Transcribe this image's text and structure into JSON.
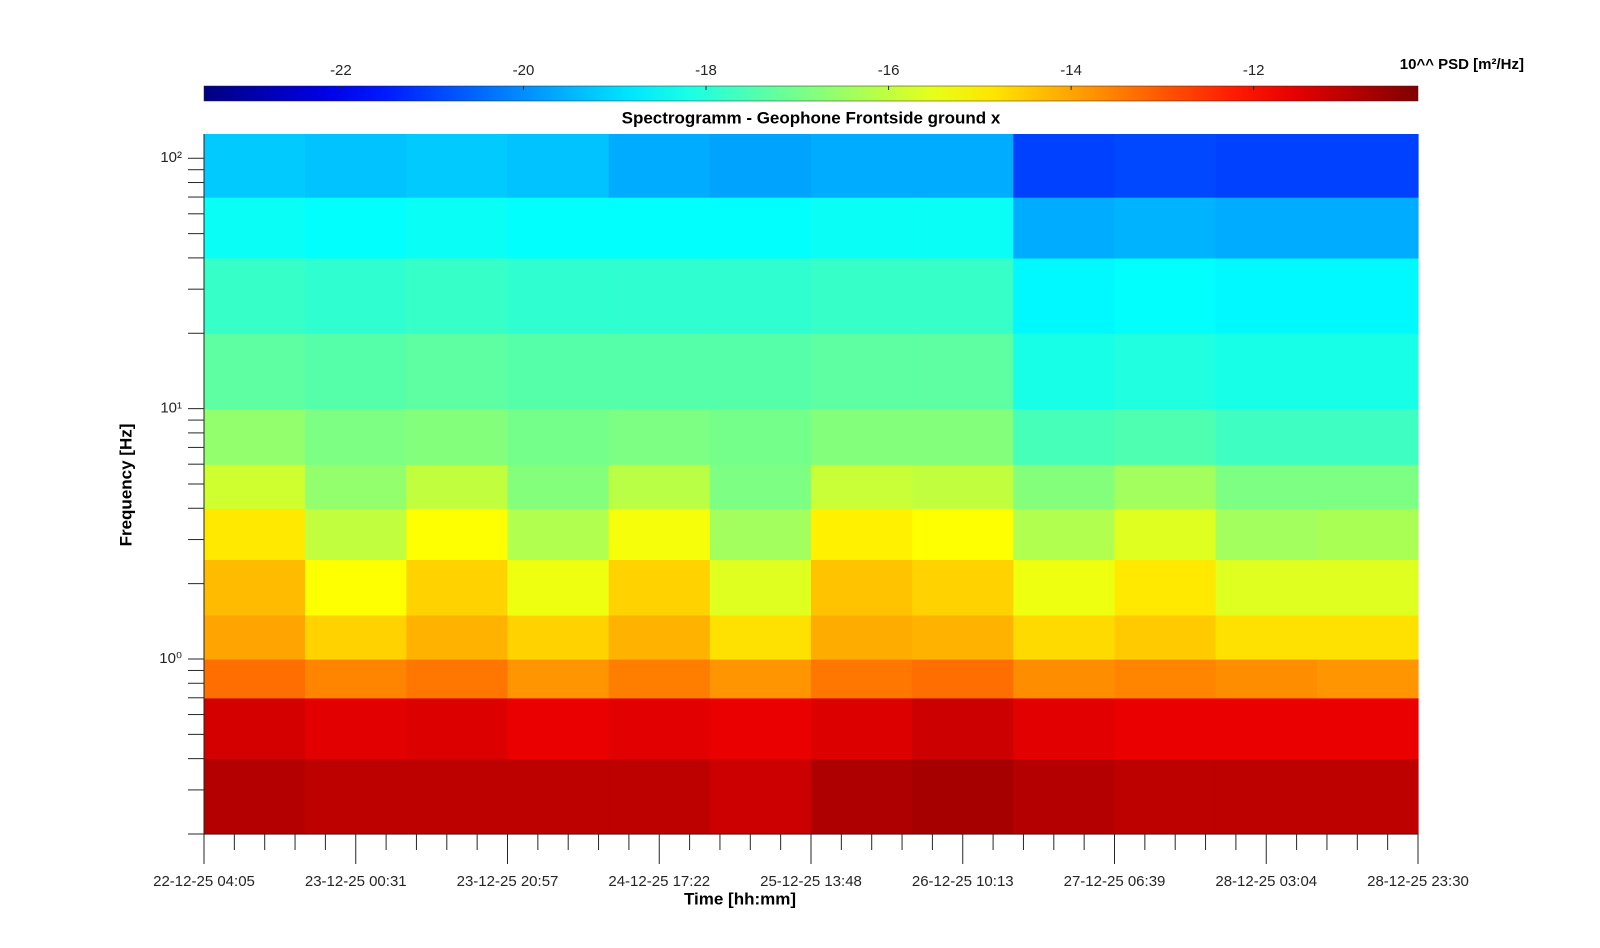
{
  "chart_data": {
    "type": "heatmap",
    "title": "Spectrogramm - Geophone Frontside ground x",
    "xlabel": "Time [hh:mm]",
    "ylabel": "Frequency [Hz]",
    "colorbar_label": "10^^ PSD [m²/Hz]",
    "colormap": "jet",
    "clim": [
      -23.5,
      -10.2
    ],
    "cticks": [
      -22,
      -20,
      -18,
      -16,
      -14,
      -12
    ],
    "y_scale": "log",
    "ylim": [
      0.2,
      125
    ],
    "yticks": [
      {
        "value": 1,
        "label": "10⁰"
      },
      {
        "value": 10,
        "label": "10¹"
      },
      {
        "value": 100,
        "label": "10²"
      }
    ],
    "xticks": [
      "22-12-25 04:05",
      "23-12-25 00:31",
      "23-12-25 20:57",
      "24-12-25 17:22",
      "25-12-25 13:48",
      "26-12-25 10:13",
      "27-12-25 06:39",
      "28-12-25 03:04",
      "28-12-25 23:30"
    ],
    "y_edges": [
      0.2,
      0.4,
      0.7,
      1,
      1.5,
      2.5,
      4,
      6,
      10,
      20,
      40,
      70,
      125
    ],
    "z": [
      [
        -10.9,
        -11,
        -11,
        -11,
        -11,
        -11.2,
        -10.8,
        -10.7,
        -10.9,
        -11,
        -11,
        -11
      ],
      [
        -11.3,
        -11.5,
        -11.4,
        -11.6,
        -11.5,
        -11.6,
        -11.4,
        -11.2,
        -11.5,
        -11.6,
        -11.6,
        -11.6
      ],
      [
        -13.3,
        -13.6,
        -13.4,
        -13.8,
        -13.5,
        -13.8,
        -13.4,
        -13.3,
        -13.7,
        -13.6,
        -13.7,
        -13.8
      ],
      [
        -14,
        -14.6,
        -14.2,
        -14.6,
        -14.2,
        -14.8,
        -14.1,
        -14.2,
        -14.7,
        -14.5,
        -14.8,
        -14.8
      ],
      [
        -14.3,
        -15.2,
        -14.6,
        -15.4,
        -14.6,
        -15.6,
        -14.4,
        -14.6,
        -15.4,
        -14.9,
        -15.6,
        -15.6
      ],
      [
        -14.9,
        -16,
        -15.2,
        -16.2,
        -15.3,
        -16.4,
        -15,
        -15.2,
        -16.2,
        -15.6,
        -16.4,
        -16.3
      ],
      [
        -15.8,
        -16.6,
        -16,
        -16.8,
        -16.1,
        -16.9,
        -15.9,
        -16,
        -16.8,
        -16.4,
        -16.9,
        -16.9
      ],
      [
        -16.6,
        -16.9,
        -16.8,
        -17,
        -16.9,
        -17,
        -16.8,
        -16.8,
        -17.6,
        -17.5,
        -17.7,
        -17.7
      ],
      [
        -17.3,
        -17.4,
        -17.3,
        -17.4,
        -17.4,
        -17.4,
        -17.3,
        -17.3,
        -18.2,
        -18.1,
        -18.2,
        -18.2
      ],
      [
        -17.8,
        -17.9,
        -17.8,
        -17.9,
        -17.9,
        -17.9,
        -17.8,
        -17.8,
        -18.6,
        -18.5,
        -18.6,
        -18.6
      ],
      [
        -18.4,
        -18.5,
        -18.4,
        -18.5,
        -18.5,
        -18.5,
        -18.4,
        -18.4,
        -19.6,
        -19.5,
        -19.6,
        -19.6
      ],
      [
        -19.2,
        -19.3,
        -19.2,
        -19.3,
        -19.6,
        -19.7,
        -19.6,
        -19.6,
        -21,
        -20.9,
        -21,
        -21
      ]
    ]
  }
}
